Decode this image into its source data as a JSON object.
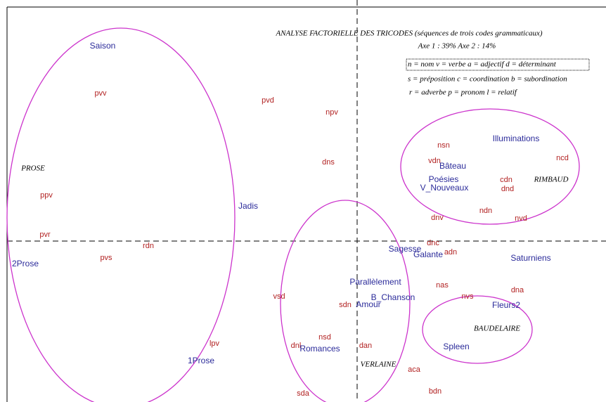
{
  "title": "ANALYSE FACTORIELLE DES TRICODES (séquences de trois codes grammaticaux)",
  "axes_note": "Axe 1 :  39%    Axe 2 :  14%",
  "legend": [
    "n = nom  v = verbe  a = adjectif  d = déterminant",
    "s = préposition  c = coordination  b = subordination",
    "r = adverbe  p = pronom  l = relatif"
  ],
  "codes": [
    "pvv",
    "pvd",
    "npv",
    "dns",
    "ppv",
    "pvr",
    "rdn",
    "pvs",
    "vsd",
    "sdn",
    "nsd",
    "dnl",
    "lpv",
    "dan",
    "sda",
    "aca",
    "bdn",
    "nas",
    "nvs",
    "dna",
    "dnc",
    "adn",
    "nsn",
    "vdn",
    "ncd",
    "cdn",
    "dnd",
    "ndn",
    "nvd",
    "dnv"
  ],
  "works": [
    "Saison",
    "Jadis",
    "2Prose",
    "1Prose",
    "Parallèlement",
    "B_Chanson",
    "Amour",
    "Romances",
    "Sagesse",
    "Galante",
    "Saturniens",
    "Fleurs2",
    "Spleen",
    "Illuminations",
    "Bâteau",
    "Poésies",
    "V_Nouveaux"
  ],
  "groups": [
    "PROSE",
    "RIMBAUD",
    "BAUDELAIRE",
    "VERLAINE"
  ]
}
